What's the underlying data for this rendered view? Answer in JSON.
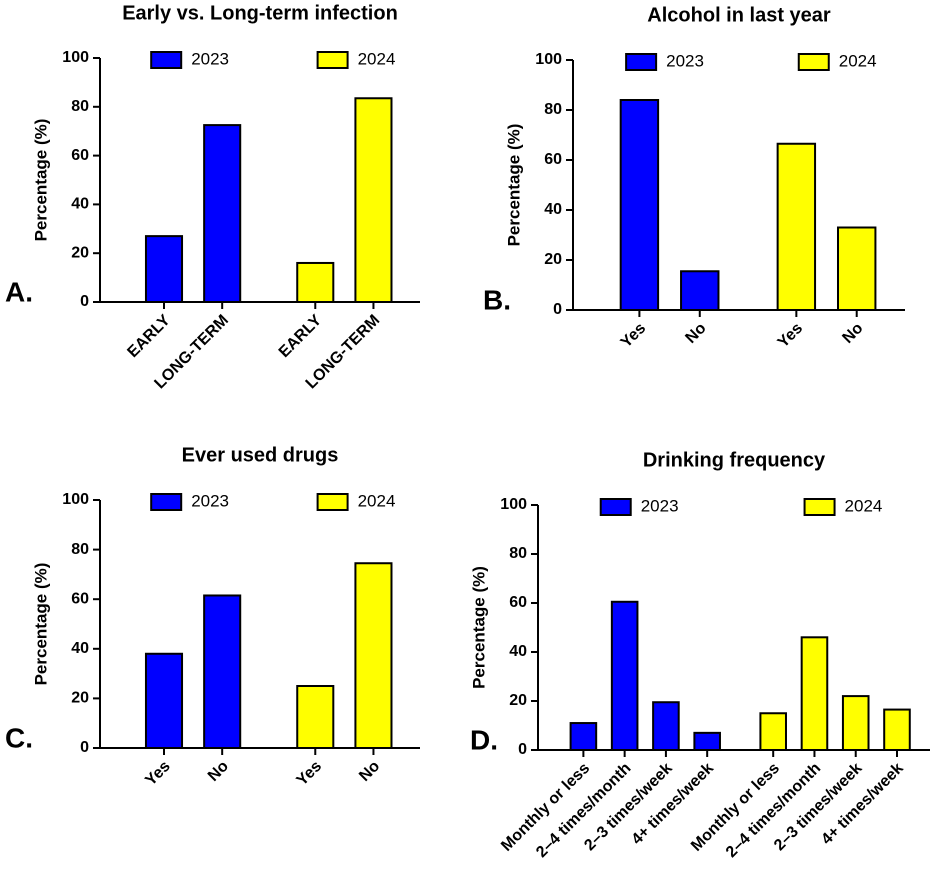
{
  "chart_data": [
    {
      "type": "bar",
      "panel_label": "A.",
      "title": "Early vs. Long-term infection",
      "y_label": "Percentage (%)",
      "categories": [
        "EARLY",
        "LONG-TERM",
        "EARLY",
        "LONG-TERM"
      ],
      "series": [
        {
          "name": "2023",
          "color": "#0000ff",
          "values": [
            27,
            72.5,
            null,
            null
          ]
        },
        {
          "name": "2024",
          "color": "#ffff00",
          "values": [
            null,
            null,
            16,
            83.5
          ]
        }
      ],
      "ylim": [
        0,
        100
      ],
      "yticks": [
        0,
        20,
        40,
        60,
        80,
        100
      ],
      "grid": false,
      "legend": "top"
    },
    {
      "type": "bar",
      "panel_label": "B.",
      "title": "Alcohol in last year",
      "y_label": "Percentage (%)",
      "categories": [
        "Yes",
        "No",
        "Yes",
        "No"
      ],
      "series": [
        {
          "name": "2023",
          "color": "#0000ff",
          "values": [
            84,
            15.5,
            null,
            null
          ]
        },
        {
          "name": "2024",
          "color": "#ffff00",
          "values": [
            null,
            null,
            66.5,
            33
          ]
        }
      ],
      "ylim": [
        0,
        100
      ],
      "yticks": [
        0,
        20,
        40,
        60,
        80,
        100
      ],
      "grid": false,
      "legend": "top"
    },
    {
      "type": "bar",
      "panel_label": "C.",
      "title": "Ever used drugs",
      "y_label": "Percentage (%)",
      "categories": [
        "Yes",
        "No",
        "Yes",
        "No"
      ],
      "series": [
        {
          "name": "2023",
          "color": "#0000ff",
          "values": [
            38,
            61.5,
            null,
            null
          ]
        },
        {
          "name": "2024",
          "color": "#ffff00",
          "values": [
            null,
            null,
            25,
            74.5
          ]
        }
      ],
      "ylim": [
        0,
        100
      ],
      "yticks": [
        0,
        20,
        40,
        60,
        80,
        100
      ],
      "grid": false,
      "legend": "top"
    },
    {
      "type": "bar",
      "panel_label": "D.",
      "title": "Drinking frequency",
      "y_label": "Percentage (%)",
      "categories": [
        "Monthly or less",
        "2–4 times/month",
        "2–3 times/week",
        "4+ times/week",
        "Monthly or less",
        "2–4 times/month",
        "2–3 times/week",
        "4+ times/week"
      ],
      "series": [
        {
          "name": "2023",
          "color": "#0000ff",
          "values": [
            11,
            60.5,
            19.5,
            7,
            null,
            null,
            null,
            null
          ]
        },
        {
          "name": "2024",
          "color": "#ffff00",
          "values": [
            null,
            null,
            null,
            null,
            15,
            46,
            22,
            16.5
          ]
        }
      ],
      "ylim": [
        0,
        100
      ],
      "yticks": [
        0,
        20,
        40,
        60,
        80,
        100
      ],
      "grid": false,
      "legend": "top"
    }
  ]
}
